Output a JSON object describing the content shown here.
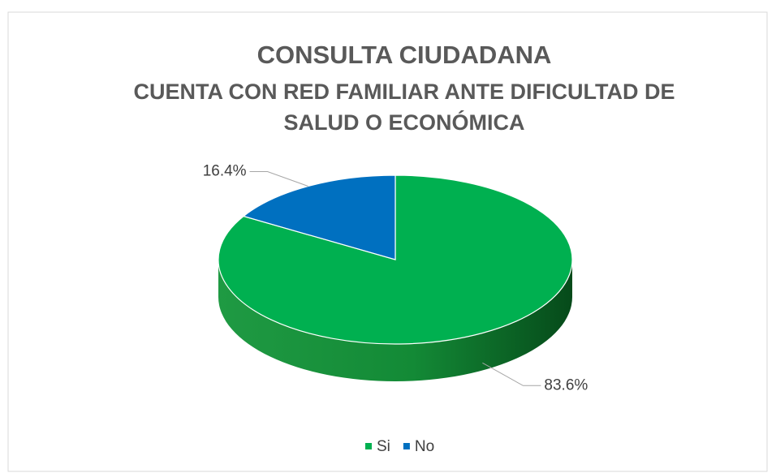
{
  "chart_data": {
    "type": "pie3d",
    "title": "CONSULTA CIUDADANA",
    "subtitle": "CUENTA CON RED FAMILIAR ANTE DIFICULTAD DE SALUD O ECONÓMICA",
    "categories": [
      "Si",
      "No"
    ],
    "values": [
      83.6,
      16.4
    ],
    "value_labels": [
      "83.6%",
      "16.4%"
    ],
    "colors": [
      "#00b050",
      "#0070c0"
    ],
    "legend": "bottom"
  }
}
